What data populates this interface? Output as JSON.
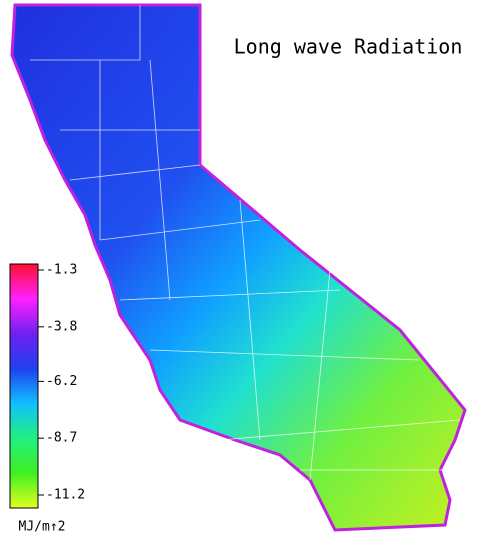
{
  "title": "Long wave Radiation",
  "colorbar": {
    "ticks": [
      -1.3,
      -3.8,
      -6.2,
      -8.7,
      -11.2
    ],
    "unit": "MJ/m↑2",
    "colors": [
      "#ff1030",
      "#ff20ff",
      "#7020f0",
      "#2040f0",
      "#10c0ff",
      "#20f080",
      "#40f020",
      "#e0ff20"
    ]
  }
}
